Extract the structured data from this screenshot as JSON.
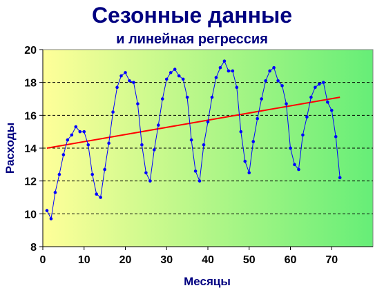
{
  "chart_data": {
    "type": "line",
    "title": "Сезонные данные",
    "subtitle": "и линейная регрессия",
    "xlabel": "Месяцы",
    "ylabel": "Расходы",
    "xlim": [
      0,
      80
    ],
    "ylim": [
      8,
      20
    ],
    "x_ticks": [
      "0",
      "10",
      "20",
      "30",
      "40",
      "50",
      "60",
      "70"
    ],
    "y_ticks": [
      "8",
      "10",
      "12",
      "14",
      "16",
      "18",
      "20"
    ],
    "grid": "dashed horizontal",
    "legend": "none",
    "colors": {
      "title": "#000080",
      "axis_title": "#000080",
      "series": "#0000ff",
      "trend": "#ff0000",
      "grid": "#000000",
      "plot_gradient_left": "#ffff99",
      "plot_gradient_right": "#66ee77"
    },
    "series": [
      {
        "type": "line-markers",
        "x": [
          1,
          2,
          3,
          4,
          5,
          6,
          7,
          8,
          9,
          10,
          11,
          12,
          13,
          14,
          15,
          16,
          17,
          18,
          19,
          20,
          21,
          22,
          23,
          24,
          25,
          26,
          27,
          28,
          29,
          30,
          31,
          32,
          33,
          34,
          35,
          36,
          37,
          38,
          39,
          40,
          41,
          42,
          43,
          44,
          45,
          46,
          47,
          48,
          49,
          50,
          51,
          52,
          53,
          54,
          55,
          56,
          57,
          58,
          59,
          60,
          61,
          62,
          63,
          64,
          65,
          66,
          67,
          68,
          69,
          70,
          71,
          72
        ],
        "values": [
          10.2,
          9.7,
          11.3,
          12.4,
          13.6,
          14.5,
          14.8,
          15.3,
          15.0,
          15.0,
          14.2,
          12.4,
          11.2,
          11.0,
          12.7,
          14.3,
          16.2,
          17.7,
          18.4,
          18.6,
          18.1,
          18.0,
          16.7,
          14.2,
          12.5,
          12.0,
          13.9,
          15.4,
          17.0,
          18.2,
          18.6,
          18.8,
          18.4,
          18.2,
          17.1,
          14.5,
          12.6,
          12.0,
          14.2,
          15.6,
          17.1,
          18.3,
          18.9,
          19.3,
          18.7,
          18.7,
          17.7,
          15.0,
          13.2,
          12.5,
          14.4,
          15.8,
          17.0,
          18.1,
          18.7,
          18.9,
          18.1,
          17.8,
          16.7,
          14.0,
          13.0,
          12.7,
          14.8,
          15.9,
          17.1,
          17.7,
          17.9,
          18.0,
          16.8,
          16.3,
          14.7,
          12.2
        ]
      },
      {
        "type": "trend-line",
        "x": [
          1,
          72
        ],
        "values": [
          14.0,
          17.1
        ]
      }
    ]
  }
}
